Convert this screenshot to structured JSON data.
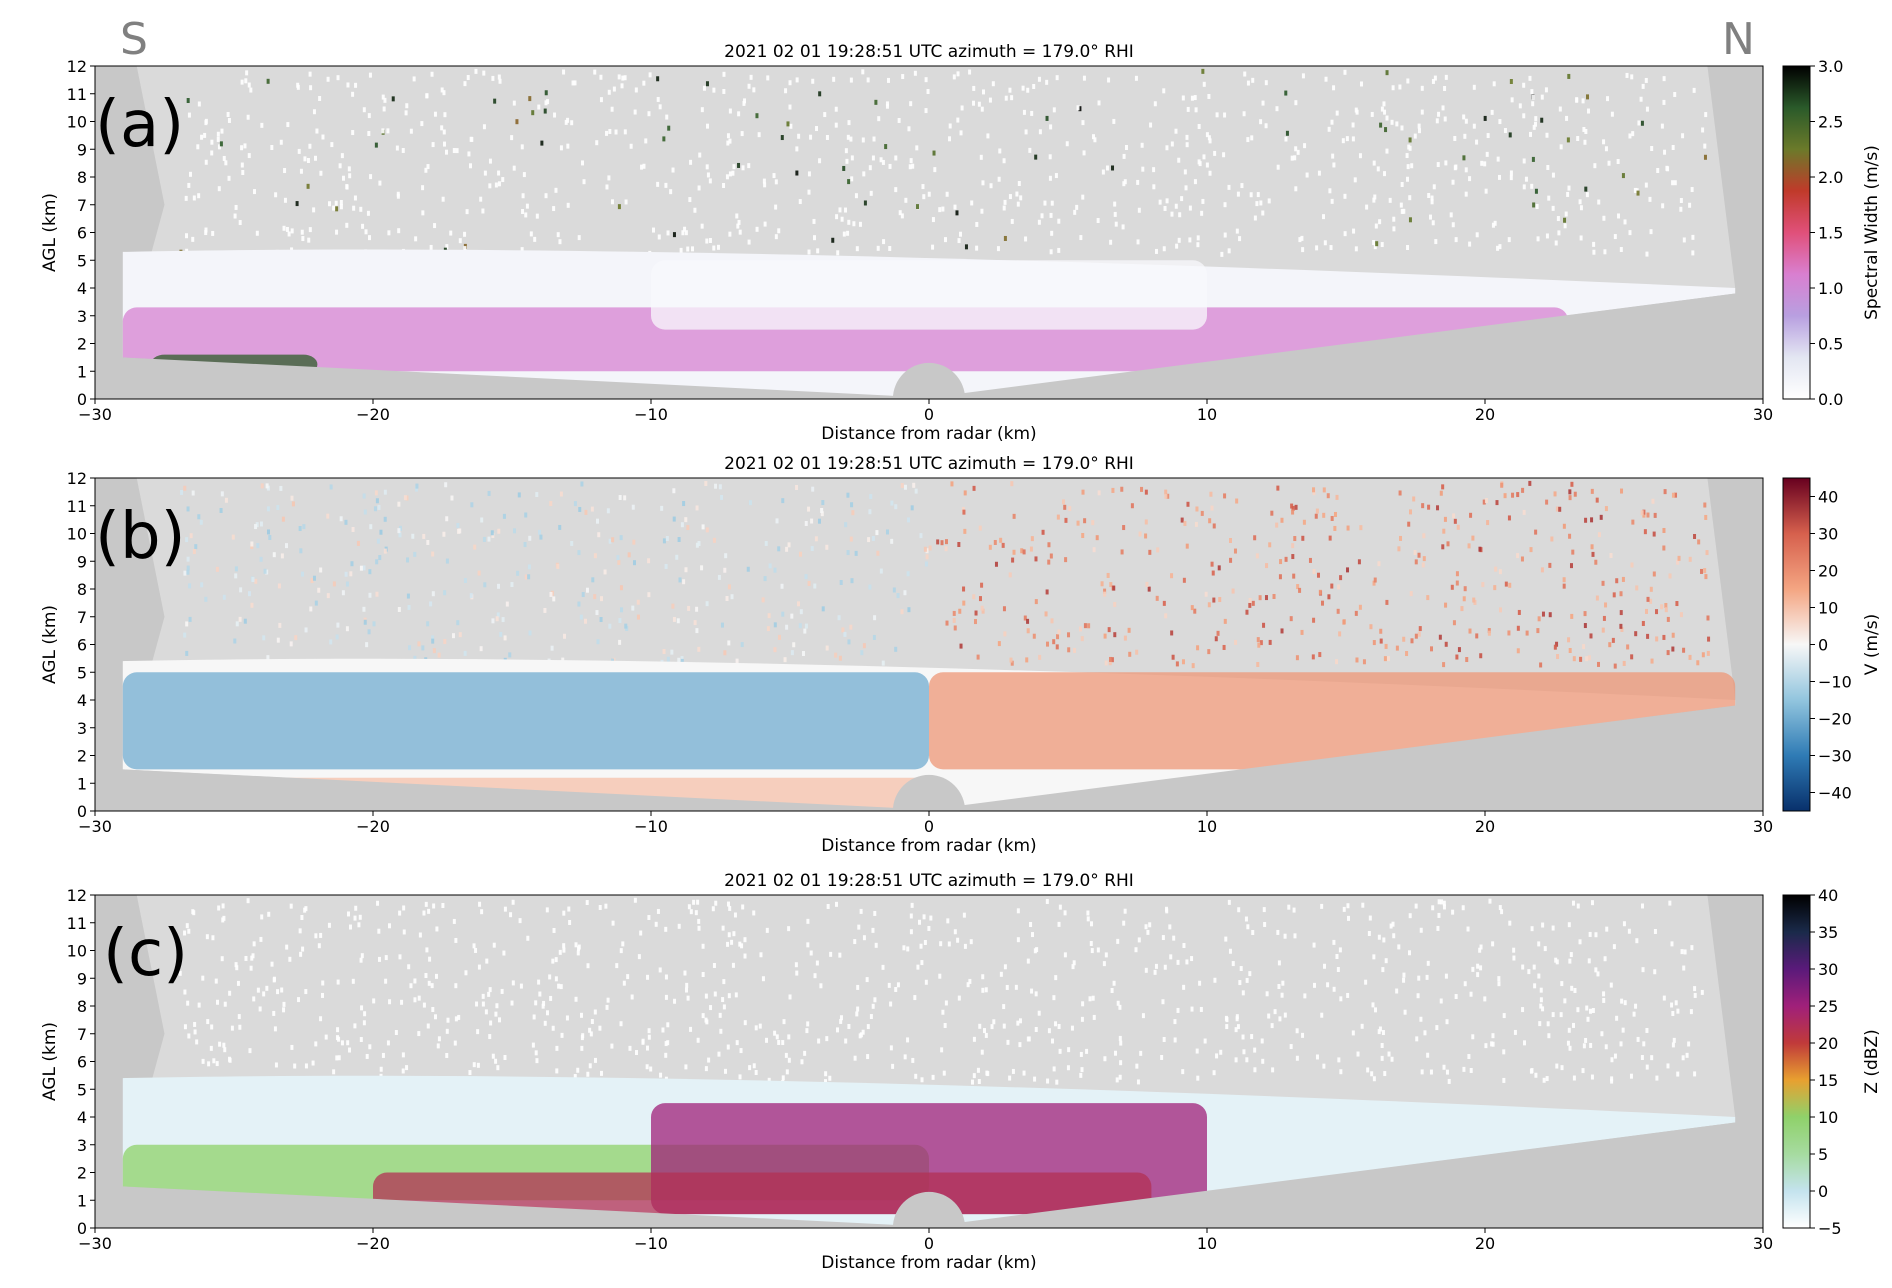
{
  "figure": {
    "direction_left": "S",
    "direction_right": "N"
  },
  "chart_data": [
    {
      "type": "heatmap",
      "panel_label": "(a)",
      "title": "2021 02 01     19:28:51 UTC     azimuth = 179.0°     RHI",
      "xlabel": "Distance from radar (km)",
      "ylabel": "AGL (km)",
      "xlim": [
        -30,
        30
      ],
      "ylim": [
        0,
        12
      ],
      "xticks": [
        -30,
        -20,
        -10,
        0,
        10,
        20,
        30
      ],
      "yticks": [
        0,
        1,
        2,
        3,
        4,
        5,
        6,
        7,
        8,
        9,
        10,
        11,
        12
      ],
      "colorbar": {
        "label": "Spectral Width (m/s)",
        "range": [
          0.0,
          3.0
        ],
        "ticks": [
          "0.0",
          "0.5",
          "1.0",
          "1.5",
          "2.0",
          "2.5",
          "3.0"
        ],
        "colors": [
          "#ffffff",
          "#e3e6f2",
          "#b89fe0",
          "#d97fd0",
          "#e0507a",
          "#c03a2a",
          "#6b7a2a",
          "#2a5a2a",
          "#000000"
        ]
      },
      "background_color": "#c8c8c8",
      "cloud_layer": {
        "base_km": 1.5,
        "top_km": 5.3,
        "x_range_km": [
          -29,
          29
        ]
      },
      "color_features": [
        {
          "x_range_km": [
            -29,
            23
          ],
          "height_km": [
            1.0,
            3.3
          ],
          "value": 1.1
        },
        {
          "x_range_km": [
            -10,
            10
          ],
          "height_km": [
            2.5,
            5.0
          ],
          "value": 0.1
        },
        {
          "x_range_km": [
            -28,
            -22
          ],
          "height_km": [
            0.9,
            1.6
          ],
          "value": 2.6
        }
      ]
    },
    {
      "type": "heatmap",
      "panel_label": "(b)",
      "title": "2021 02 01     19:28:51 UTC     azimuth = 179.0°     RHI",
      "xlabel": "Distance from radar (km)",
      "ylabel": "AGL (km)",
      "xlim": [
        -30,
        30
      ],
      "ylim": [
        0,
        12
      ],
      "xticks": [
        -30,
        -20,
        -10,
        0,
        10,
        20,
        30
      ],
      "yticks": [
        0,
        1,
        2,
        3,
        4,
        5,
        6,
        7,
        8,
        9,
        10,
        11,
        12
      ],
      "colorbar": {
        "label": "V (m/s)",
        "range": [
          -45,
          45
        ],
        "ticks": [
          "−40",
          "−30",
          "−20",
          "−10",
          "0",
          "10",
          "20",
          "30",
          "40"
        ],
        "colors": [
          "#08306b",
          "#2f7bb5",
          "#92c5de",
          "#f7f7f7",
          "#f4a582",
          "#d6604d",
          "#67001f"
        ]
      },
      "background_color": "#c8c8c8",
      "cloud_layer": {
        "base_km": 1.3,
        "top_km": 5.4,
        "x_range_km": [
          -29,
          29
        ]
      },
      "color_features": [
        {
          "x_range_km": [
            -29,
            0
          ],
          "height_km": [
            1.5,
            5.0
          ],
          "value": -20
        },
        {
          "x_range_km": [
            0,
            29
          ],
          "height_km": [
            1.5,
            5.0
          ],
          "value": 18
        },
        {
          "x_range_km": [
            -29,
            0
          ],
          "height_km": [
            0.0,
            1.2
          ],
          "value": 10
        }
      ]
    },
    {
      "type": "heatmap",
      "panel_label": "(c)",
      "title": "2021 02 01     19:28:51 UTC     azimuth = 179.0°     RHI",
      "xlabel": "Distance from radar (km)",
      "ylabel": "AGL (km)",
      "xlim": [
        -30,
        30
      ],
      "ylim": [
        0,
        12
      ],
      "xticks": [
        -30,
        -20,
        -10,
        0,
        10,
        20,
        30
      ],
      "yticks": [
        0,
        1,
        2,
        3,
        4,
        5,
        6,
        7,
        8,
        9,
        10,
        11,
        12
      ],
      "colorbar": {
        "label": "Z (dBZ)",
        "range": [
          -5,
          40
        ],
        "ticks": [
          "−5",
          "0",
          "5",
          "10",
          "15",
          "20",
          "25",
          "30",
          "35",
          "40"
        ],
        "colors": [
          "#ffffff",
          "#c4e3ee",
          "#a6dba0",
          "#8fd16a",
          "#e8a030",
          "#c03a3a",
          "#a0207a",
          "#5a1a7a",
          "#1a2a4a",
          "#000000"
        ]
      },
      "background_color": "#c8c8c8",
      "cloud_layer": {
        "base_km": 0.5,
        "top_km": 5.4,
        "x_range_km": [
          -29,
          29
        ]
      },
      "color_features": [
        {
          "x_range_km": [
            -29,
            0
          ],
          "height_km": [
            1.0,
            3.0
          ],
          "value": 10
        },
        {
          "x_range_km": [
            -10,
            10
          ],
          "height_km": [
            0.5,
            4.5
          ],
          "value": 25
        },
        {
          "x_range_km": [
            -20,
            8
          ],
          "height_km": [
            0.5,
            2.0
          ],
          "value": 22
        }
      ]
    }
  ]
}
